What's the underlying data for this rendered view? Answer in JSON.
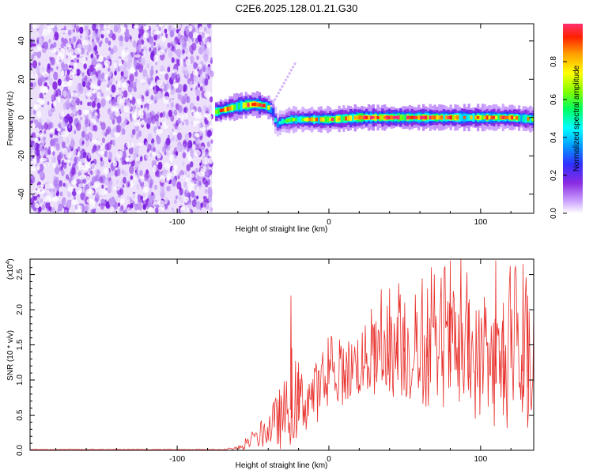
{
  "figure": {
    "title": "C2E6.2025.128.01.21.G30"
  },
  "chart_data": [
    {
      "type": "heatmap",
      "xlabel": "Height of straight line (km)",
      "ylabel": "Frequency (Hz)",
      "xlim": [
        -197,
        135
      ],
      "ylim": [
        -50,
        49
      ],
      "xticks": [
        -100,
        0,
        100
      ],
      "yticks": [
        -40,
        -20,
        0,
        20,
        40
      ],
      "colorbar": {
        "label": "Normalized spectral amplitude",
        "range": [
          0,
          1
        ],
        "ticks": [
          "0.0",
          "0.2",
          "0.4",
          "0.6",
          "0.8"
        ],
        "colormap": [
          "#ffffff",
          "#cfa8ff",
          "#8a2be2",
          "#3030ff",
          "#00a0ff",
          "#00ffff",
          "#00ff60",
          "#80ff00",
          "#ffff00",
          "#ffa000",
          "#ff2000",
          "#ff3070"
        ]
      },
      "ridge": {
        "description_points_x": [
          -75,
          -70,
          -60,
          -50,
          -42,
          -38,
          -35,
          -32,
          -30,
          -25,
          -15,
          0,
          20,
          40,
          60,
          80,
          100,
          120,
          135
        ],
        "frequency": [
          3,
          4,
          6,
          7,
          6,
          4,
          -4,
          -2,
          -2,
          -1,
          -1,
          -1,
          0,
          0,
          0,
          0,
          0,
          0,
          -1
        ],
        "peak_amplitude": [
          0.8,
          0.8,
          0.9,
          0.95,
          0.9,
          0.5,
          0.4,
          0.5,
          0.5,
          0.6,
          0.7,
          0.8,
          0.9,
          0.85,
          0.9,
          0.85,
          0.8,
          0.8,
          0.7
        ]
      },
      "noise_region_x": [
        -197,
        -77
      ]
    },
    {
      "type": "line",
      "xlabel": "Height of straight line (km)",
      "ylabel": "SNR (10 * v/v)",
      "multiplier_label": "(x10",
      "multiplier_exp": "4",
      "xlim": [
        -197,
        135
      ],
      "ylim": [
        0,
        2.72
      ],
      "xticks": [
        -100,
        0,
        100
      ],
      "yticks": [
        "0.0",
        "0.5",
        "1.0",
        "1.5",
        "2.0",
        "2.5"
      ],
      "color": "#e8302c",
      "envelope": {
        "x": [
          -197,
          -70,
          -60,
          -50,
          -40,
          -30,
          -20,
          -10,
          0,
          10,
          20,
          30,
          40,
          50,
          60,
          70,
          80,
          90,
          100,
          110,
          120,
          135
        ],
        "mean": [
          0.01,
          0.01,
          0.03,
          0.12,
          0.3,
          0.5,
          0.65,
          0.8,
          0.95,
          1.1,
          1.25,
          1.3,
          1.35,
          1.4,
          1.3,
          1.35,
          1.4,
          1.3,
          1.25,
          1.2,
          1.15,
          1.1
        ],
        "spread": [
          0.005,
          0.005,
          0.03,
          0.1,
          0.25,
          0.5,
          0.5,
          0.45,
          0.4,
          0.45,
          0.5,
          0.55,
          0.6,
          0.7,
          0.7,
          0.75,
          0.8,
          0.8,
          0.85,
          0.9,
          0.9,
          0.9
        ]
      },
      "spikes": [
        [
          -25,
          2.2
        ],
        [
          -24.5,
          1.3
        ],
        [
          40,
          2.3
        ],
        [
          45,
          1.9
        ],
        [
          50,
          2.1
        ],
        [
          80,
          2.7
        ],
        [
          110,
          2.7
        ],
        [
          115,
          2.1
        ],
        [
          128,
          2.65
        ],
        [
          131,
          2.2
        ],
        [
          -20,
          1.25
        ],
        [
          30,
          1.8
        ],
        [
          65,
          2.3
        ],
        [
          92,
          2.1
        ]
      ]
    }
  ]
}
